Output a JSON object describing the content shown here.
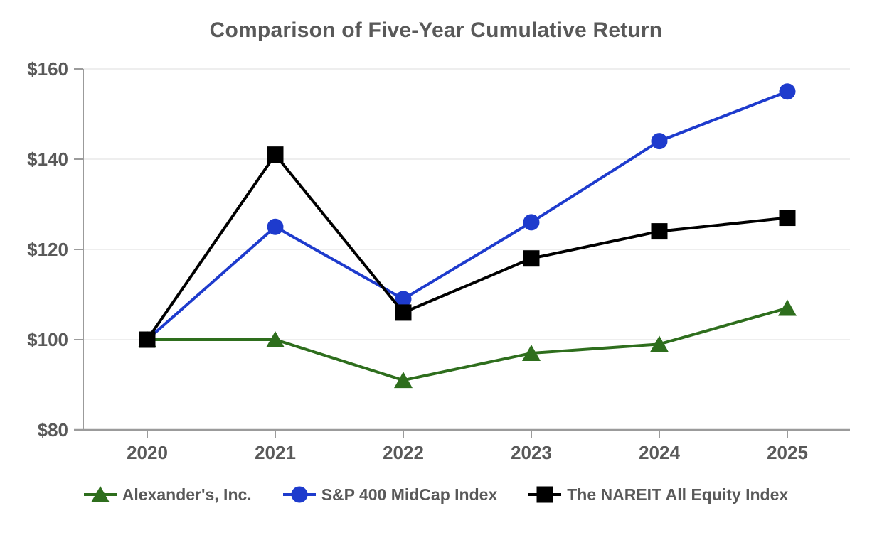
{
  "chart_data": {
    "type": "line",
    "title": "Comparison of Five-Year Cumulative Return",
    "x": [
      "2020",
      "2021",
      "2022",
      "2023",
      "2024",
      "2025"
    ],
    "series": [
      {
        "name": "Alexander's, Inc.",
        "marker": "triangle",
        "color": "#2e6e1d",
        "values": [
          100,
          100,
          91,
          97,
          99,
          107
        ]
      },
      {
        "name": "S&P 400 MidCap Index",
        "marker": "circle",
        "color": "#1e3bcd",
        "values": [
          100,
          125,
          109,
          126,
          144,
          155
        ]
      },
      {
        "name": "The NAREIT All Equity Index",
        "marker": "square",
        "color": "#000000",
        "values": [
          100,
          141,
          106,
          118,
          124,
          127
        ]
      }
    ],
    "ylim": [
      80,
      160
    ],
    "ytick_step": 20,
    "ytick_prefix": "$",
    "ytick_labels": [
      "$80",
      "$100",
      "$120",
      "$140",
      "$160"
    ],
    "grid": true,
    "legend_position": "bottom",
    "colors": {
      "title_text": "#595959",
      "axis_text": "#595959",
      "gridline": "#e9e9e9",
      "axis_line": "#9b9b9b",
      "background": "#ffffff"
    }
  }
}
